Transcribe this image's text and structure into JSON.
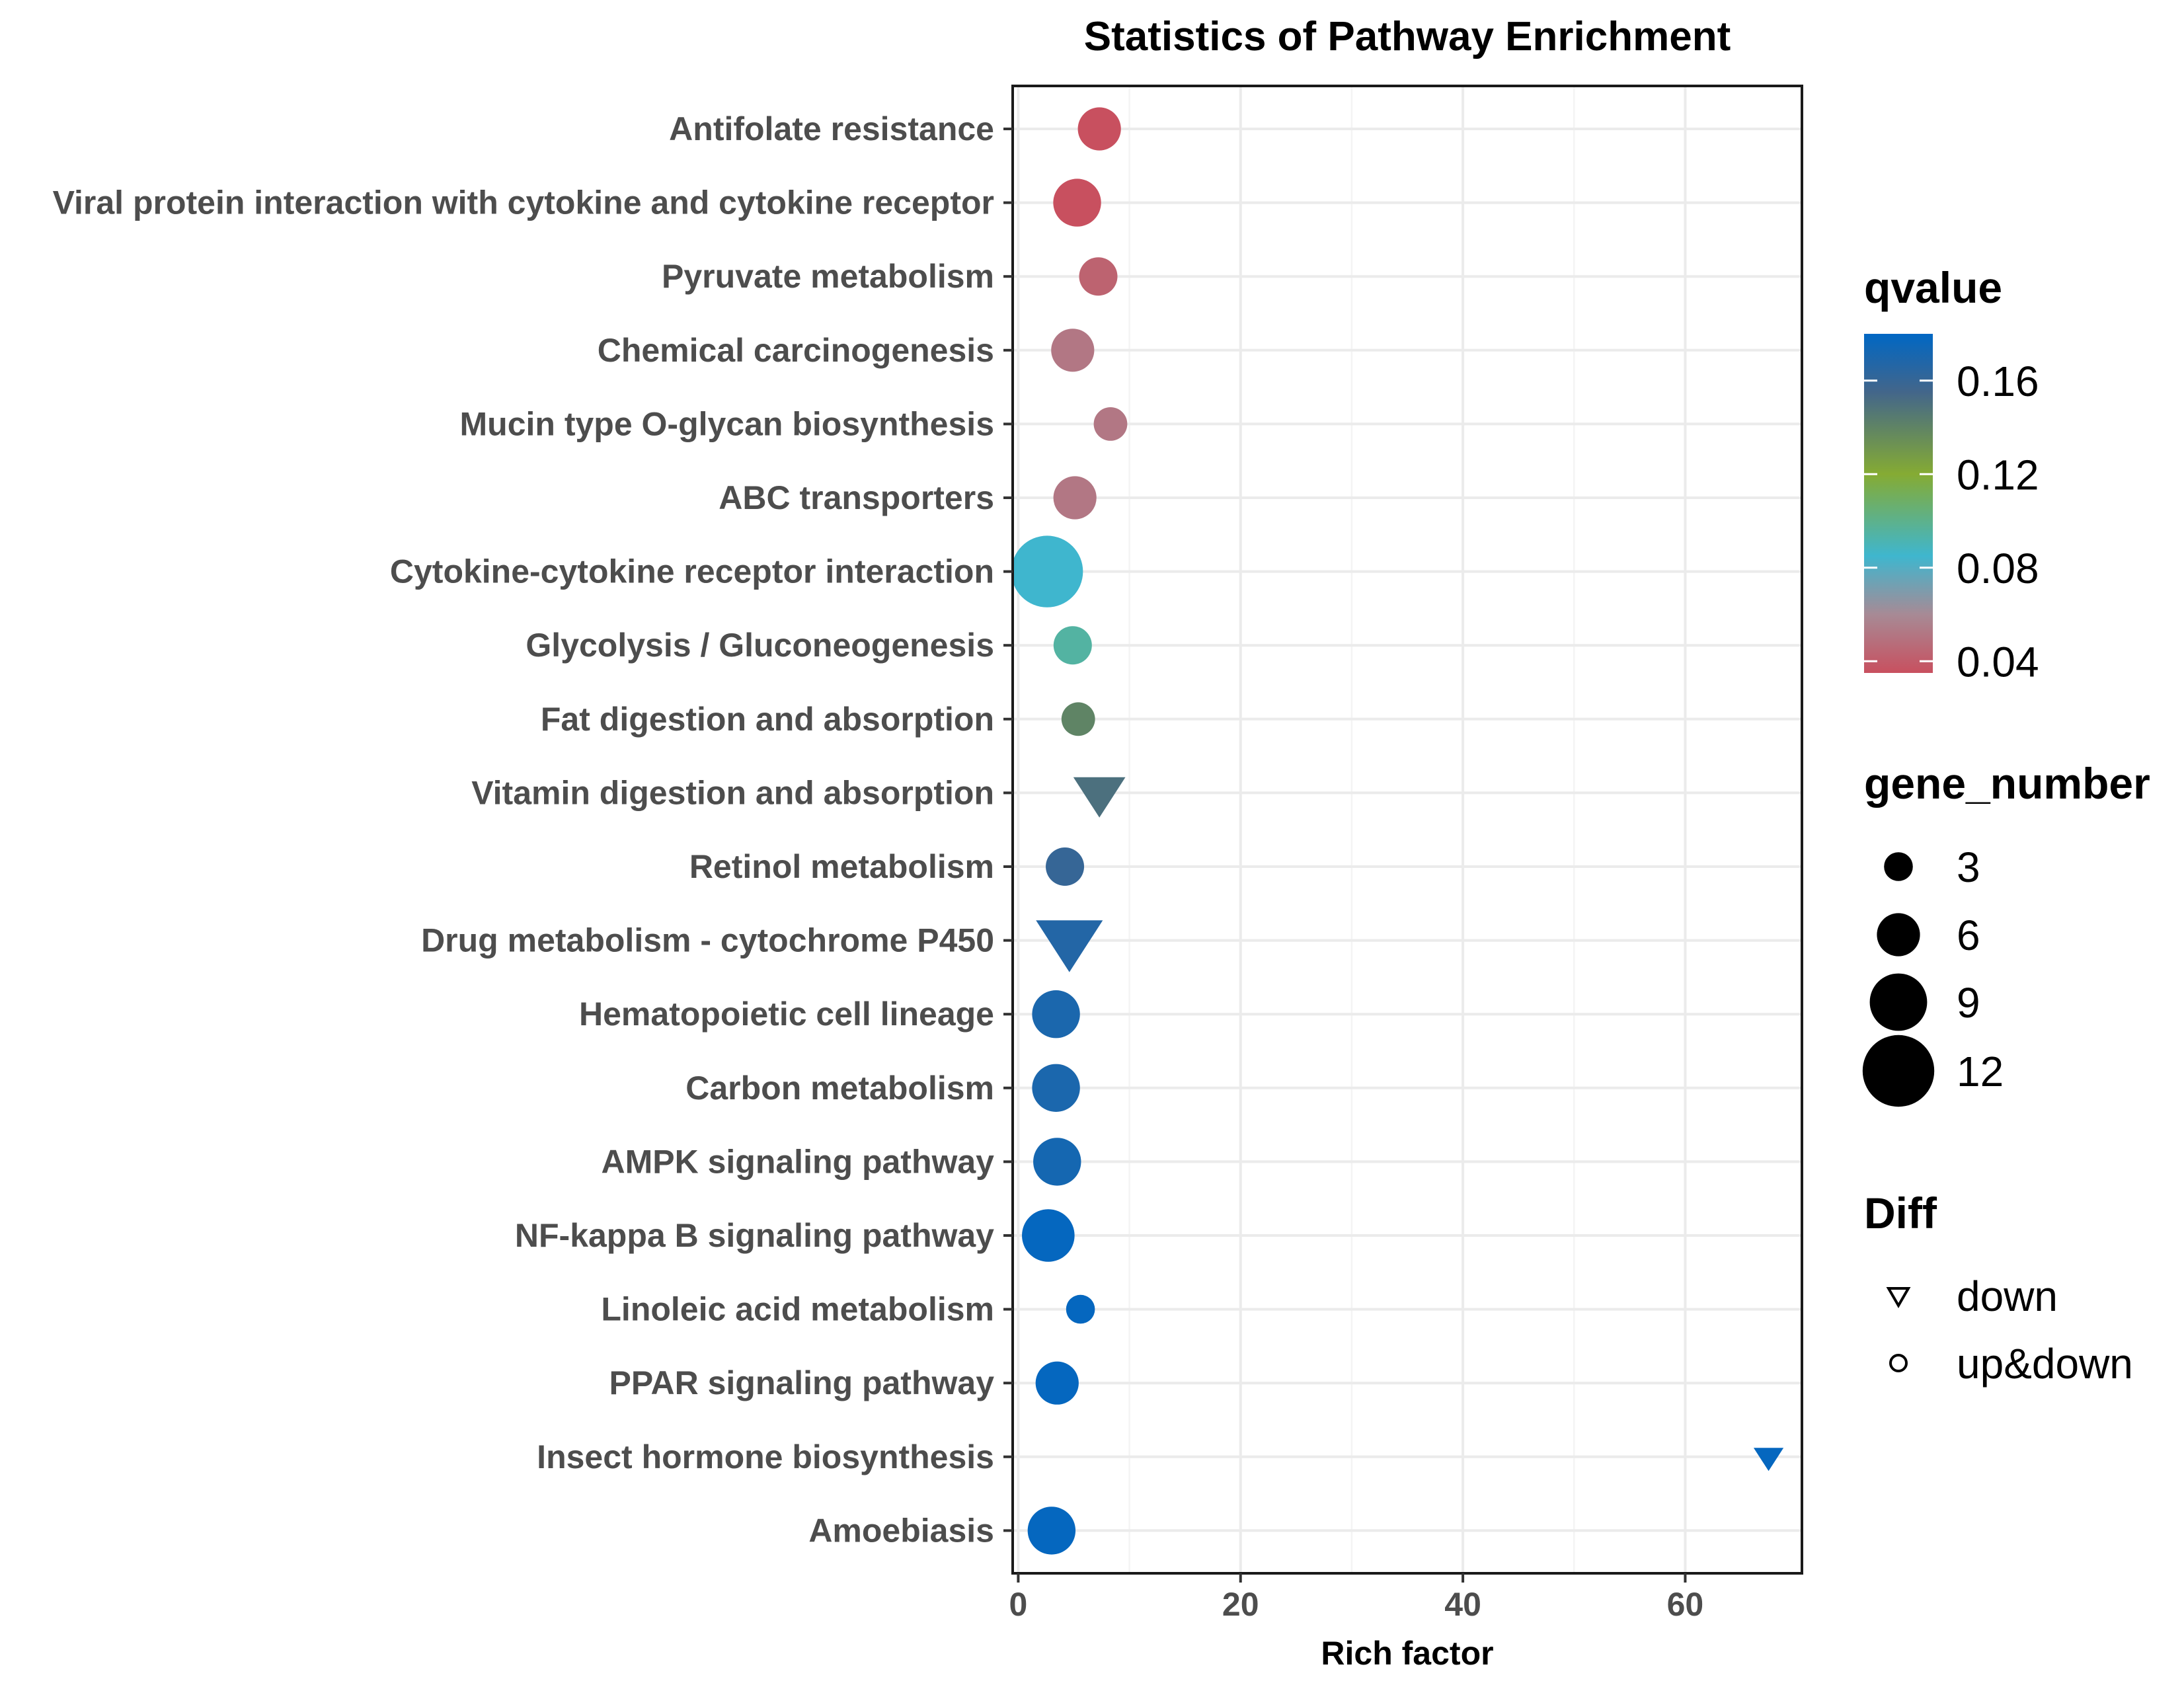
{
  "chart_data": {
    "type": "scatter",
    "title": "Statistics of Pathway Enrichment",
    "xlabel": "Rich factor",
    "ylabel": "",
    "xlim": [
      -0.5,
      70.5
    ],
    "xticks": [
      0,
      20,
      40,
      60
    ],
    "xtick_labels": [
      "0",
      "20",
      "40",
      "60"
    ],
    "grid": true,
    "categories": [
      "Antifolate resistance",
      "Viral protein interaction with cytokine and cytokine receptor",
      "Pyruvate metabolism",
      "Chemical carcinogenesis",
      "Mucin type O-glycan biosynthesis",
      "ABC transporters",
      "Cytokine-cytokine receptor interaction",
      "Glycolysis / Gluconeogenesis",
      "Fat digestion and absorption",
      "Vitamin digestion and absorption",
      "Retinol metabolism",
      "Drug metabolism - cytochrome P450",
      "Hematopoietic cell lineage",
      "Carbon metabolism",
      "AMPK signaling pathway",
      "NF-kappa B signaling pathway",
      "Linoleic acid metabolism",
      "PPAR signaling pathway",
      "Insect hormone biosynthesis",
      "Amoebiasis"
    ],
    "points": [
      {
        "pathway": "Antifolate resistance",
        "rich_factor": 7.3,
        "qvalue": 0.035,
        "gene_number": 6,
        "diff": "up&down"
      },
      {
        "pathway": "Viral protein interaction with cytokine and cytokine receptor",
        "rich_factor": 5.3,
        "qvalue": 0.035,
        "gene_number": 7,
        "diff": "up&down"
      },
      {
        "pathway": "Pyruvate metabolism",
        "rich_factor": 7.2,
        "qvalue": 0.043,
        "gene_number": 5,
        "diff": "up&down"
      },
      {
        "pathway": "Chemical carcinogenesis",
        "rich_factor": 4.9,
        "qvalue": 0.052,
        "gene_number": 6,
        "diff": "up&down"
      },
      {
        "pathway": "Mucin type O-glycan biosynthesis",
        "rich_factor": 8.3,
        "qvalue": 0.052,
        "gene_number": 4,
        "diff": "up&down"
      },
      {
        "pathway": "ABC transporters",
        "rich_factor": 5.1,
        "qvalue": 0.052,
        "gene_number": 6,
        "diff": "up&down"
      },
      {
        "pathway": "Cytokine-cytokine receptor interaction",
        "rich_factor": 2.6,
        "qvalue": 0.085,
        "gene_number": 12,
        "diff": "up&down"
      },
      {
        "pathway": "Glycolysis / Gluconeogenesis",
        "rich_factor": 4.9,
        "qvalue": 0.095,
        "gene_number": 5,
        "diff": "up&down"
      },
      {
        "pathway": "Fat digestion and absorption",
        "rich_factor": 5.4,
        "qvalue": 0.14,
        "gene_number": 4,
        "diff": "up&down"
      },
      {
        "pathway": "Vitamin digestion and absorption",
        "rich_factor": 7.3,
        "qvalue": 0.15,
        "gene_number": 4,
        "diff": "down"
      },
      {
        "pathway": "Retinol metabolism",
        "rich_factor": 4.2,
        "qvalue": 0.16,
        "gene_number": 5,
        "diff": "up&down"
      },
      {
        "pathway": "Drug metabolism - cytochrome P450",
        "rich_factor": 4.6,
        "qvalue": 0.167,
        "gene_number": 6,
        "diff": "down"
      },
      {
        "pathway": "Hematopoietic cell lineage",
        "rich_factor": 3.4,
        "qvalue": 0.17,
        "gene_number": 7,
        "diff": "up&down"
      },
      {
        "pathway": "Carbon metabolism",
        "rich_factor": 3.4,
        "qvalue": 0.17,
        "gene_number": 7,
        "diff": "up&down"
      },
      {
        "pathway": "AMPK signaling pathway",
        "rich_factor": 3.5,
        "qvalue": 0.172,
        "gene_number": 7,
        "diff": "up&down"
      },
      {
        "pathway": "NF-kappa B signaling pathway",
        "rich_factor": 2.7,
        "qvalue": 0.178,
        "gene_number": 8,
        "diff": "up&down"
      },
      {
        "pathway": "Linoleic acid metabolism",
        "rich_factor": 5.6,
        "qvalue": 0.178,
        "gene_number": 3,
        "diff": "up&down"
      },
      {
        "pathway": "PPAR signaling pathway",
        "rich_factor": 3.5,
        "qvalue": 0.178,
        "gene_number": 6,
        "diff": "up&down"
      },
      {
        "pathway": "Insect hormone biosynthesis",
        "rich_factor": 67.5,
        "qvalue": 0.178,
        "gene_number": 1,
        "diff": "down"
      },
      {
        "pathway": "Amoebiasis",
        "rich_factor": 3.0,
        "qvalue": 0.178,
        "gene_number": 7,
        "diff": "up&down"
      }
    ],
    "legend": {
      "position": "right",
      "color": {
        "title": "qvalue",
        "range": [
          0.035,
          0.18
        ],
        "ticks": [
          0.04,
          0.08,
          0.12,
          0.16
        ],
        "tick_labels": [
          "0.04",
          "0.08",
          "0.12",
          "0.16"
        ],
        "colors": [
          {
            "at": 0.035,
            "color": "#c8505f"
          },
          {
            "at": 0.06,
            "color": "#a78a95"
          },
          {
            "at": 0.085,
            "color": "#3fb6ce"
          },
          {
            "at": 0.12,
            "color": "#85ab33"
          },
          {
            "at": 0.155,
            "color": "#43668a"
          },
          {
            "at": 0.18,
            "color": "#0067c4"
          }
        ]
      },
      "size": {
        "title": "gene_number",
        "values": [
          3,
          6,
          9,
          12
        ],
        "labels": [
          "3",
          "6",
          "9",
          "12"
        ]
      },
      "shape": {
        "title": "Diff",
        "entries": [
          {
            "key": "down",
            "label": "down"
          },
          {
            "key": "up&down",
            "label": "up&down"
          }
        ]
      }
    }
  }
}
